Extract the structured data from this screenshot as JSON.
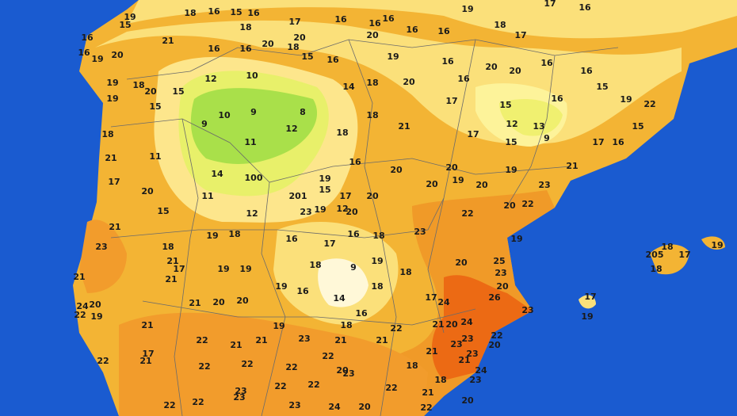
{
  "stations": [
    "19",
    "15",
    "16",
    "16",
    "20",
    "19",
    "19",
    "19",
    "18",
    "20",
    "15",
    "15",
    "21",
    "18",
    "16",
    "15",
    "16",
    "18",
    "20",
    "20",
    "17",
    "16",
    "16",
    "20",
    "16",
    "16",
    "16",
    "19",
    "18",
    "17",
    "17",
    "16",
    "16",
    "16",
    "18",
    "15",
    "16",
    "19",
    "20",
    "16",
    "20",
    "20",
    "16",
    "16",
    "12",
    "10",
    "14",
    "18",
    "16",
    "10",
    "9",
    "8",
    "9",
    "12",
    "11",
    "18",
    "18",
    "21",
    "17",
    "17",
    "15",
    "12",
    "13",
    "9",
    "15",
    "16",
    "15",
    "19",
    "22",
    "15",
    "17",
    "16",
    "11",
    "14",
    "100",
    "18",
    "21",
    "17",
    "20",
    "11",
    "15",
    "12",
    "201",
    "19",
    "15",
    "17",
    "16",
    "20",
    "20",
    "20",
    "20",
    "19",
    "20",
    "19",
    "23",
    "21",
    "21",
    "23",
    "19",
    "18",
    "18",
    "23",
    "19",
    "12",
    "20",
    "16",
    "18",
    "17",
    "16",
    "23",
    "22",
    "22",
    "20",
    "19",
    "21",
    "21",
    "17",
    "21",
    "19",
    "19",
    "18",
    "9",
    "19",
    "18",
    "20",
    "25",
    "23",
    "20",
    "26",
    "23",
    "19",
    "16",
    "14",
    "16",
    "18",
    "17",
    "24",
    "24",
    "20",
    "22",
    "19",
    "21",
    "20",
    "20",
    "21",
    "19",
    "18",
    "22",
    "21",
    "20",
    "24",
    "17",
    "19",
    "23",
    "23",
    "22",
    "20",
    "17",
    "21",
    "22",
    "22",
    "21",
    "21",
    "23",
    "21",
    "21",
    "22",
    "21",
    "23",
    "21",
    "22",
    "22",
    "22",
    "20",
    "23",
    "18",
    "24",
    "18",
    "23",
    "22",
    "22",
    "22",
    "21",
    "23",
    "22",
    "22",
    "23",
    "23",
    "24",
    "20",
    "22",
    "20",
    "205",
    "18",
    "17",
    "18",
    "19"
  ]
}
